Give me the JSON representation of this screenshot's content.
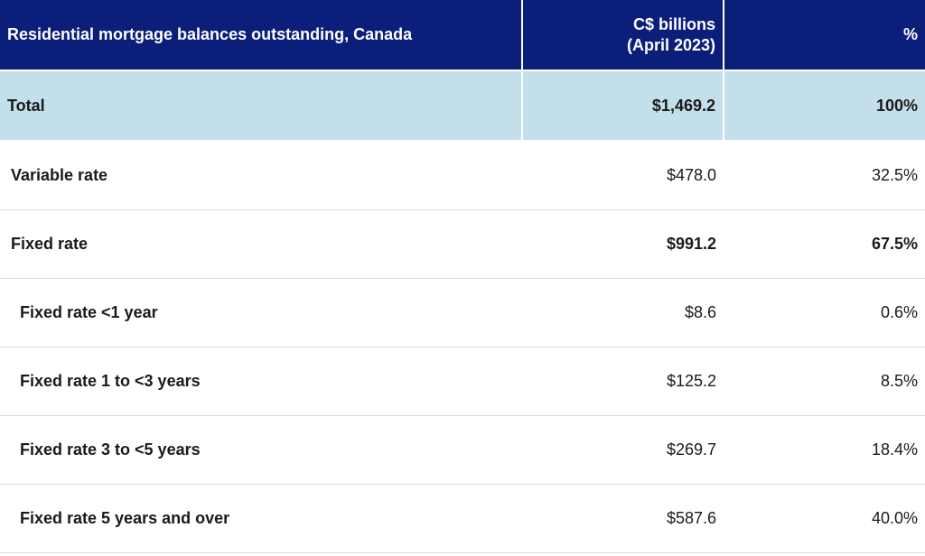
{
  "header": {
    "label": "Residential mortgage balances outstanding, Canada",
    "col2_line1": "C$ billions",
    "col2_line2": "(April 2023)",
    "col3": "%"
  },
  "rows": [
    {
      "label": "Total",
      "amount": "$1,469.2",
      "percent": "100%"
    },
    {
      "label": "Variable rate",
      "amount": "$478.0",
      "percent": "32.5%"
    },
    {
      "label": "Fixed rate",
      "amount": "$991.2",
      "percent": "67.5%"
    },
    {
      "label": "Fixed rate <1 year",
      "amount": "$8.6",
      "percent": "0.6%"
    },
    {
      "label": "Fixed rate 1 to <3 years",
      "amount": "$125.2",
      "percent": "8.5%"
    },
    {
      "label": "Fixed rate 3 to <5 years",
      "amount": "$269.7",
      "percent": "18.4%"
    },
    {
      "label": "Fixed rate 5 years and over",
      "amount": "$587.6",
      "percent": "40.0%"
    }
  ],
  "colors": {
    "header_bg": "#0b1f7a",
    "total_bg": "#c3dfec",
    "row_divider": "#c9dfe9"
  }
}
